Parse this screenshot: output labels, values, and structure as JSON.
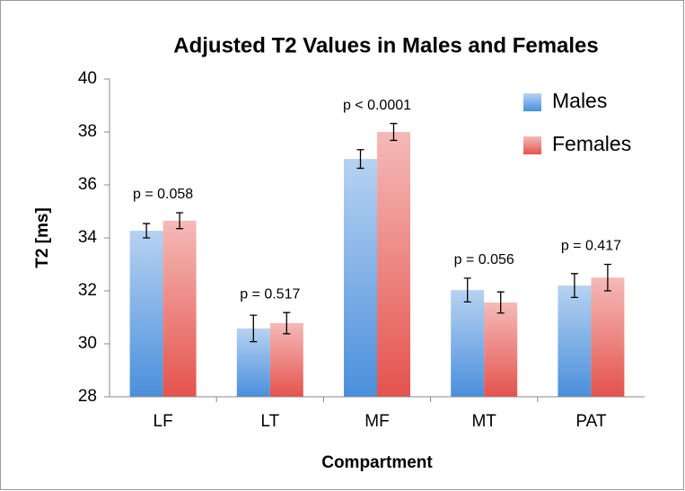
{
  "chart_data": {
    "type": "bar",
    "title": "Adjusted T2 Values in Males and Females",
    "xlabel": "Compartment",
    "ylabel": "T2 [ms]",
    "categories": [
      "LF",
      "LT",
      "MF",
      "MT",
      "PAT"
    ],
    "series": [
      {
        "name": "Males",
        "color": "#4a8fdc",
        "values": [
          34.27,
          30.58,
          36.98,
          32.03,
          32.2
        ],
        "errors": [
          0.27,
          0.5,
          0.35,
          0.45,
          0.45
        ]
      },
      {
        "name": "Females",
        "color": "#e5534d",
        "values": [
          34.65,
          30.78,
          38.0,
          31.56,
          32.5
        ],
        "errors": [
          0.3,
          0.4,
          0.32,
          0.4,
          0.5
        ]
      }
    ],
    "annotations": [
      "p = 0.058",
      "p = 0.517",
      "p < 0.0001",
      "p = 0.056",
      "p = 0.417"
    ],
    "ylim": [
      28,
      40
    ],
    "yticks": [
      28,
      30,
      32,
      34,
      36,
      38,
      40
    ],
    "grid": false,
    "legend": "upper right"
  }
}
